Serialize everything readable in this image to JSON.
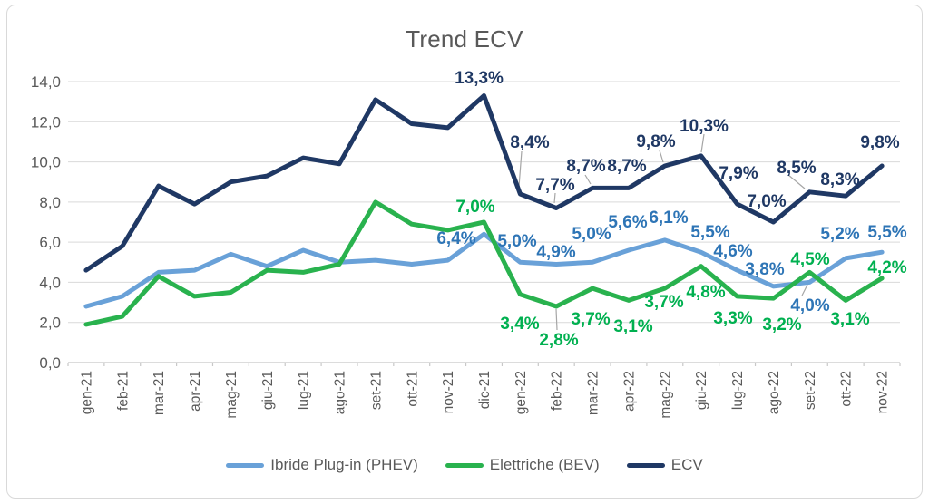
{
  "chart_data": {
    "type": "line",
    "title": "Trend ECV",
    "categories": [
      "gen-21",
      "feb-21",
      "mar-21",
      "apr-21",
      "mag-21",
      "giu-21",
      "lug-21",
      "ago-21",
      "set-21",
      "ott-21",
      "nov-21",
      "dic-21",
      "gen-22",
      "feb-22",
      "mar-22",
      "apr-22",
      "mag-22",
      "giu-22",
      "lug-22",
      "ago-22",
      "set-22",
      "ott-22",
      "nov-22"
    ],
    "y_axis": {
      "min": 0,
      "max": 14,
      "step": 2,
      "tick_labels": [
        "0,0",
        "2,0",
        "4,0",
        "6,0",
        "8,0",
        "10,0",
        "12,0",
        "14,0"
      ]
    },
    "grid": true,
    "legend_position": "bottom",
    "colors": {
      "grid": "#D9D9D9",
      "axis": "#C8C8C8",
      "text": "#595959",
      "leader": "#A6A6A6"
    },
    "series": [
      {
        "name": "Ibride Plug-in (PHEV)",
        "color": "#69A1D8",
        "label_color": "#2E75B6",
        "values": [
          2.8,
          3.3,
          4.5,
          4.6,
          5.4,
          4.8,
          5.6,
          5.0,
          5.1,
          4.9,
          5.1,
          6.4,
          5.0,
          4.9,
          5.0,
          5.6,
          6.1,
          5.5,
          4.6,
          3.8,
          4.0,
          5.2,
          5.5
        ],
        "point_labels": [
          null,
          null,
          null,
          null,
          null,
          null,
          null,
          null,
          null,
          null,
          null,
          "6,4%",
          "5,0%",
          "4,9%",
          "5,0%",
          "5,6%",
          "6,1%",
          "5,5%",
          "4,6%",
          "3,8%",
          "4,0%",
          "5,2%",
          "5,5%"
        ]
      },
      {
        "name": "Elettriche (BEV)",
        "color": "#29B24E",
        "label_color": "#00B050",
        "values": [
          1.9,
          2.3,
          4.3,
          3.3,
          3.5,
          4.6,
          4.5,
          4.9,
          8.0,
          6.9,
          6.6,
          7.0,
          3.4,
          2.8,
          3.7,
          3.1,
          3.7,
          4.8,
          3.3,
          3.2,
          4.5,
          3.1,
          4.2
        ],
        "point_labels": [
          null,
          null,
          null,
          null,
          null,
          null,
          null,
          null,
          null,
          null,
          null,
          "7,0%",
          "3,4%",
          "2,8%",
          "3,7%",
          "3,1%",
          "3,7%",
          "4,8%",
          "3,3%",
          "3,2%",
          "4,5%",
          "3,1%",
          "4,2%"
        ]
      },
      {
        "name": "ECV",
        "color": "#1F3864",
        "label_color": "#1F3864",
        "values": [
          4.6,
          5.8,
          8.8,
          7.9,
          9.0,
          9.3,
          10.2,
          9.9,
          13.1,
          11.9,
          11.7,
          13.3,
          8.4,
          7.7,
          8.7,
          8.7,
          9.8,
          10.3,
          7.9,
          7.0,
          8.5,
          8.3,
          9.8
        ],
        "point_labels": [
          null,
          null,
          null,
          null,
          null,
          null,
          null,
          null,
          null,
          null,
          null,
          "13,3%",
          "8,4%",
          "7,7%",
          "8,7%",
          "8,7%",
          "9,8%",
          "10,3%",
          "7,9%",
          "7,0%",
          "8,5%",
          "8,3%",
          "9,8%"
        ]
      }
    ]
  }
}
